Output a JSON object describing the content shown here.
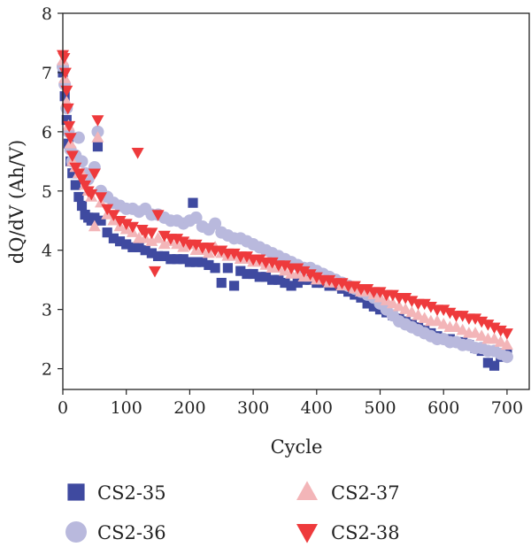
{
  "chart_data": {
    "type": "scatter",
    "title": "",
    "xlabel": "Cycle",
    "ylabel": "dQ/dV (Ah/V)",
    "xlim": [
      0,
      735
    ],
    "ylim": [
      1.65,
      8
    ],
    "xticks": [
      0,
      100,
      200,
      300,
      400,
      500,
      600,
      700
    ],
    "yticks": [
      2,
      3,
      4,
      5,
      6,
      7,
      8
    ],
    "grid": false,
    "legend_position": "bottom",
    "series": [
      {
        "name": "CS2-35",
        "marker": "square",
        "color": "#3f4aa0",
        "x": [
          0,
          3,
          6,
          9,
          12,
          15,
          20,
          25,
          30,
          35,
          40,
          45,
          50,
          55,
          60,
          70,
          80,
          90,
          100,
          110,
          120,
          130,
          140,
          150,
          160,
          170,
          180,
          190,
          200,
          205,
          210,
          220,
          230,
          240,
          250,
          260,
          270,
          280,
          290,
          300,
          310,
          320,
          330,
          340,
          350,
          360,
          370,
          380,
          390,
          400,
          410,
          420,
          430,
          440,
          450,
          460,
          470,
          480,
          490,
          500,
          510,
          520,
          530,
          540,
          550,
          560,
          570,
          580,
          590,
          600,
          610,
          620,
          630,
          640,
          650,
          660,
          670,
          680,
          690,
          700
        ],
        "y": [
          7.0,
          6.6,
          6.2,
          5.8,
          5.5,
          5.3,
          5.1,
          4.9,
          4.75,
          4.6,
          4.55,
          4.5,
          4.55,
          5.75,
          4.5,
          4.3,
          4.2,
          4.15,
          4.1,
          4.05,
          4.05,
          4.0,
          3.95,
          3.9,
          3.9,
          3.85,
          3.85,
          3.85,
          3.8,
          4.8,
          3.8,
          3.8,
          3.75,
          3.7,
          3.45,
          3.7,
          3.4,
          3.65,
          3.6,
          3.6,
          3.55,
          3.55,
          3.5,
          3.5,
          3.45,
          3.4,
          3.45,
          3.5,
          3.5,
          3.45,
          3.45,
          3.4,
          3.4,
          3.35,
          3.3,
          3.25,
          3.2,
          3.1,
          3.05,
          3.0,
          2.95,
          2.9,
          2.85,
          2.8,
          2.75,
          2.7,
          2.65,
          2.6,
          2.55,
          2.5,
          2.5,
          2.45,
          2.45,
          2.4,
          2.35,
          2.3,
          2.1,
          2.05,
          2.2,
          2.25
        ]
      },
      {
        "name": "CS2-36",
        "marker": "circle",
        "color": "#b9b9dd",
        "x": [
          0,
          3,
          6,
          9,
          12,
          15,
          20,
          25,
          30,
          35,
          40,
          45,
          50,
          55,
          60,
          70,
          80,
          90,
          100,
          110,
          120,
          130,
          140,
          150,
          160,
          170,
          180,
          190,
          200,
          210,
          220,
          230,
          240,
          250,
          260,
          270,
          280,
          290,
          300,
          310,
          320,
          330,
          340,
          350,
          360,
          370,
          380,
          390,
          400,
          410,
          420,
          430,
          440,
          450,
          460,
          470,
          480,
          490,
          500,
          510,
          520,
          530,
          540,
          550,
          560,
          570,
          580,
          590,
          600,
          610,
          620,
          630,
          640,
          650,
          660,
          670,
          680,
          690,
          700
        ],
        "y": [
          7.1,
          6.8,
          6.4,
          6.0,
          5.7,
          5.5,
          5.6,
          5.9,
          5.5,
          5.3,
          5.2,
          5.3,
          5.4,
          6.0,
          5.0,
          4.9,
          4.8,
          4.75,
          4.7,
          4.7,
          4.65,
          4.7,
          4.6,
          4.6,
          4.55,
          4.5,
          4.5,
          4.45,
          4.5,
          4.55,
          4.4,
          4.35,
          4.45,
          4.3,
          4.25,
          4.2,
          4.2,
          4.15,
          4.1,
          4.05,
          4.0,
          3.95,
          3.9,
          3.85,
          3.8,
          3.75,
          3.7,
          3.7,
          3.65,
          3.6,
          3.55,
          3.5,
          3.45,
          3.4,
          3.35,
          3.3,
          3.25,
          3.2,
          3.1,
          3.0,
          2.9,
          2.8,
          2.75,
          2.7,
          2.65,
          2.6,
          2.55,
          2.5,
          2.5,
          2.45,
          2.45,
          2.4,
          2.4,
          2.35,
          2.35,
          2.3,
          2.3,
          2.25,
          2.2
        ]
      },
      {
        "name": "CS2-37",
        "marker": "triangle-up",
        "color": "#f3b5b8",
        "x": [
          0,
          3,
          6,
          9,
          12,
          15,
          20,
          25,
          30,
          35,
          40,
          45,
          50,
          55,
          60,
          70,
          80,
          90,
          100,
          110,
          120,
          130,
          140,
          150,
          160,
          170,
          180,
          190,
          200,
          210,
          220,
          230,
          240,
          250,
          260,
          270,
          280,
          290,
          300,
          310,
          320,
          330,
          340,
          350,
          360,
          370,
          380,
          390,
          400,
          410,
          420,
          430,
          440,
          450,
          460,
          470,
          480,
          490,
          500,
          510,
          520,
          530,
          540,
          550,
          560,
          570,
          580,
          590,
          600,
          610,
          620,
          630,
          640,
          650,
          660,
          670,
          680,
          690,
          700
        ],
        "y": [
          7.2,
          6.9,
          6.5,
          6.1,
          5.8,
          5.5,
          5.4,
          5.3,
          5.3,
          5.1,
          5.0,
          4.9,
          4.4,
          5.9,
          4.8,
          4.6,
          4.5,
          4.4,
          4.35,
          4.3,
          4.2,
          4.2,
          4.15,
          4.2,
          4.1,
          4.15,
          4.1,
          4.05,
          4.1,
          4.0,
          4.0,
          3.95,
          4.05,
          3.95,
          3.9,
          3.9,
          3.85,
          3.85,
          3.8,
          3.8,
          3.75,
          3.7,
          3.7,
          3.65,
          3.6,
          3.6,
          3.55,
          3.55,
          3.5,
          3.5,
          3.45,
          3.45,
          3.4,
          3.4,
          3.35,
          3.3,
          3.3,
          3.25,
          3.2,
          3.15,
          3.1,
          3.05,
          3.0,
          2.95,
          2.9,
          2.85,
          2.8,
          2.8,
          2.75,
          2.7,
          2.7,
          2.65,
          2.6,
          2.6,
          2.55,
          2.5,
          2.5,
          2.45,
          2.4
        ]
      },
      {
        "name": "CS2-38",
        "marker": "triangle-down",
        "color": "#ee3a3c",
        "x": [
          0,
          2,
          4,
          6,
          8,
          10,
          12,
          15,
          20,
          25,
          30,
          35,
          40,
          45,
          50,
          55,
          60,
          70,
          80,
          90,
          100,
          110,
          118,
          125,
          130,
          140,
          145,
          150,
          160,
          170,
          180,
          190,
          200,
          210,
          220,
          230,
          240,
          250,
          260,
          270,
          280,
          290,
          300,
          310,
          320,
          330,
          340,
          350,
          360,
          370,
          380,
          390,
          400,
          410,
          420,
          430,
          440,
          450,
          460,
          470,
          480,
          490,
          500,
          510,
          520,
          530,
          540,
          550,
          560,
          570,
          580,
          590,
          600,
          610,
          620,
          630,
          640,
          650,
          660,
          670,
          680,
          690,
          700
        ],
        "y": [
          7.3,
          7.25,
          7.0,
          6.7,
          6.4,
          6.1,
          5.9,
          5.6,
          5.4,
          5.3,
          5.2,
          5.1,
          5.0,
          4.95,
          5.3,
          6.2,
          4.9,
          4.7,
          4.6,
          4.5,
          4.45,
          4.4,
          5.65,
          4.35,
          4.3,
          4.3,
          3.65,
          4.6,
          4.25,
          4.2,
          4.2,
          4.15,
          4.1,
          4.1,
          4.05,
          4.05,
          4.0,
          4.0,
          3.95,
          3.95,
          3.9,
          3.9,
          3.85,
          3.85,
          3.8,
          3.8,
          3.75,
          3.75,
          3.7,
          3.7,
          3.65,
          3.6,
          3.55,
          3.5,
          3.5,
          3.45,
          3.45,
          3.4,
          3.4,
          3.35,
          3.35,
          3.3,
          3.3,
          3.25,
          3.25,
          3.2,
          3.2,
          3.15,
          3.1,
          3.1,
          3.05,
          3.0,
          3.0,
          2.95,
          2.9,
          2.9,
          2.85,
          2.85,
          2.8,
          2.75,
          2.7,
          2.65,
          2.6
        ]
      }
    ]
  }
}
